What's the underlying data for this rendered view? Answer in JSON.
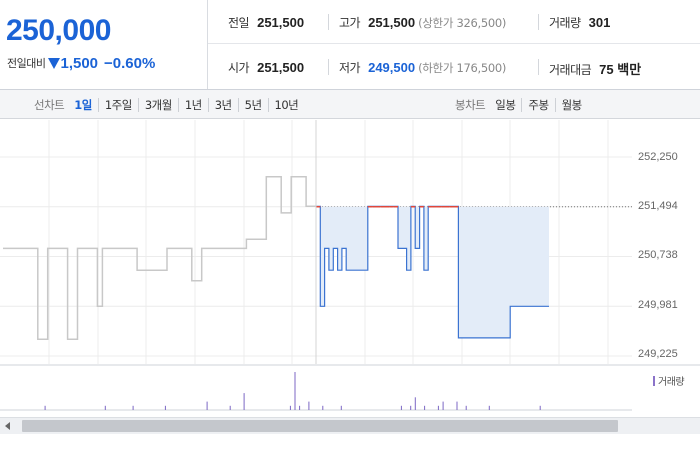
{
  "quote": {
    "current_price": "250,000",
    "change_label": "전일대비",
    "direction_icon": "down-triangle-icon",
    "change_amount": "1,500",
    "change_rate": "−0.60%"
  },
  "stats": {
    "prev_close": {
      "label": "전일",
      "value": "251,500"
    },
    "high": {
      "label": "고가",
      "value": "251,500",
      "note": "(상한가 326,500)"
    },
    "volume": {
      "label": "거래량",
      "value": "301"
    },
    "open": {
      "label": "시가",
      "value": "251,500"
    },
    "low": {
      "label": "저가",
      "value": "249,500",
      "note": "(하한가 176,500)"
    },
    "trade_value": {
      "label": "거래대금",
      "value": "75 백만"
    }
  },
  "tabs": {
    "line_label": "선차트",
    "line_periods": [
      "1일",
      "1주일",
      "3개월",
      "1년",
      "3년",
      "5년",
      "10년"
    ],
    "line_active": "1일",
    "candle_label": "봉차트",
    "candle_periods": [
      "일봉",
      "주봉",
      "월봉"
    ]
  },
  "colors": {
    "accent_blue": "#1b63d6",
    "today_line": "#3b73d1",
    "today_fill": "#e3ecf8",
    "history_line": "#c8c8c8",
    "prev_close_segment": "#e0463a",
    "volume_bar": "#7c67c4"
  },
  "chart_data": {
    "type": "line",
    "y_ticks": [
      "252,250",
      "251,494",
      "250,738",
      "249,981",
      "249,225"
    ],
    "ylim": [
      249225,
      252250
    ],
    "reference_line": 251494,
    "legend": "거래량",
    "grid": true,
    "series": [
      {
        "points": [
          [
            0,
            250860
          ],
          [
            1,
            250860
          ],
          [
            2,
            250860
          ],
          [
            3,
            250860
          ],
          [
            4,
            250860
          ],
          [
            5,
            250860
          ],
          [
            6,
            250860
          ],
          [
            7,
            249480
          ],
          [
            8,
            249480
          ],
          [
            9,
            250860
          ],
          [
            10,
            250860
          ],
          [
            11,
            250860
          ],
          [
            12,
            250860
          ],
          [
            13,
            249480
          ],
          [
            14,
            249480
          ],
          [
            15,
            250860
          ],
          [
            16,
            250860
          ],
          [
            17,
            250860
          ],
          [
            18,
            250860
          ],
          [
            19,
            249980
          ],
          [
            20,
            250860
          ],
          [
            21,
            250860
          ],
          [
            22,
            250860
          ],
          [
            23,
            250860
          ],
          [
            24,
            250860
          ],
          [
            25,
            250860
          ],
          [
            26,
            250860
          ],
          [
            27,
            250530
          ],
          [
            28,
            250530
          ],
          [
            29,
            250530
          ],
          [
            30,
            250530
          ],
          [
            31,
            250530
          ],
          [
            32,
            250530
          ],
          [
            33,
            250860
          ],
          [
            34,
            250860
          ],
          [
            35,
            250860
          ],
          [
            36,
            250860
          ],
          [
            37,
            250860
          ],
          [
            38,
            250370
          ],
          [
            39,
            250370
          ],
          [
            40,
            250860
          ],
          [
            41,
            250860
          ],
          [
            42,
            250860
          ],
          [
            43,
            250860
          ],
          [
            44,
            250860
          ],
          [
            45,
            250860
          ],
          [
            46,
            250860
          ],
          [
            47,
            250860
          ],
          [
            48,
            250860
          ],
          [
            49,
            251000
          ],
          [
            50,
            251000
          ],
          [
            51,
            251000
          ],
          [
            52,
            251000
          ],
          [
            53,
            251950
          ],
          [
            54,
            251950
          ],
          [
            55,
            251950
          ],
          [
            56,
            251400
          ],
          [
            57,
            251400
          ],
          [
            58,
            251950
          ],
          [
            59,
            251950
          ],
          [
            60,
            251950
          ],
          [
            61,
            251500
          ],
          [
            62,
            251500
          ]
        ]
      },
      {
        "points": [
          [
            0,
            251500
          ],
          [
            1,
            249980
          ],
          [
            2,
            250860
          ],
          [
            3,
            250530
          ],
          [
            4,
            250860
          ],
          [
            5,
            250530
          ],
          [
            6,
            250860
          ],
          [
            7,
            250530
          ],
          [
            8,
            250530
          ],
          [
            9,
            250530
          ],
          [
            10,
            250530
          ],
          [
            11,
            250530
          ],
          [
            12,
            251500
          ],
          [
            13,
            251500
          ],
          [
            14,
            251500
          ],
          [
            15,
            251500
          ],
          [
            16,
            251500
          ],
          [
            17,
            251500
          ],
          [
            18,
            251500
          ],
          [
            19,
            250860
          ],
          [
            20,
            250860
          ],
          [
            21,
            250530
          ],
          [
            22,
            251500
          ],
          [
            23,
            250860
          ],
          [
            24,
            251500
          ],
          [
            25,
            250530
          ],
          [
            26,
            251500
          ],
          [
            27,
            251500
          ],
          [
            28,
            251500
          ],
          [
            29,
            251500
          ],
          [
            30,
            251500
          ],
          [
            31,
            251500
          ],
          [
            32,
            251500
          ],
          [
            33,
            249500
          ],
          [
            34,
            249500
          ],
          [
            35,
            249500
          ],
          [
            36,
            249500
          ],
          [
            37,
            249500
          ],
          [
            38,
            249500
          ],
          [
            39,
            249500
          ],
          [
            40,
            249500
          ],
          [
            41,
            249500
          ],
          [
            42,
            249500
          ],
          [
            43,
            249500
          ],
          [
            44,
            249500
          ],
          [
            45,
            249980
          ],
          [
            46,
            249980
          ],
          [
            47,
            249980
          ],
          [
            48,
            249980
          ],
          [
            49,
            249980
          ],
          [
            50,
            249980
          ],
          [
            51,
            249980
          ],
          [
            52,
            249980
          ],
          [
            53,
            249980
          ]
        ]
      }
    ],
    "volume": [
      0,
      0,
      0,
      0,
      0,
      0,
      0,
      0,
      0,
      1,
      0,
      0,
      0,
      0,
      0,
      0,
      0,
      0,
      0,
      0,
      0,
      0,
      1,
      0,
      0,
      0,
      0,
      0,
      1,
      0,
      0,
      0,
      0,
      0,
      0,
      1,
      0,
      0,
      0,
      0,
      0,
      0,
      0,
      0,
      2,
      0,
      0,
      0,
      0,
      1,
      0,
      0,
      4,
      0,
      0,
      0,
      0,
      0,
      0,
      0,
      0,
      0,
      1,
      9,
      1,
      0,
      2,
      0,
      0,
      1,
      0,
      0,
      0,
      1,
      0,
      0,
      0,
      0,
      0,
      0,
      0,
      0,
      0,
      0,
      0,
      0,
      1,
      0,
      1,
      3,
      0,
      1,
      0,
      0,
      1,
      2,
      0,
      0,
      2,
      0,
      1,
      0,
      0,
      0,
      0,
      1,
      0,
      0,
      0,
      0,
      0,
      0,
      0,
      0,
      0,
      0,
      1,
      0
    ]
  }
}
